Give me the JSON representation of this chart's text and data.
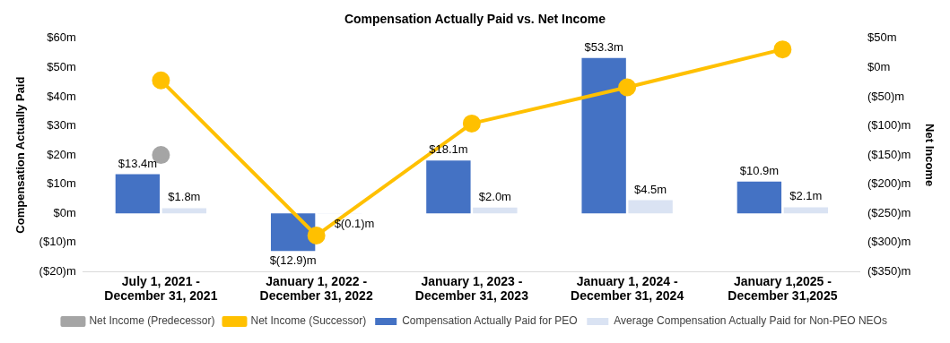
{
  "chart_data": {
    "type": "bar",
    "title": "Compensation Actually Paid vs. Net Income",
    "ylabel": "Compensation Actually Paid",
    "y2label": "Net Income",
    "categories": [
      "July 1, 2021 -\nDecember 31, 2021",
      "January 1, 2022 -\nDecember 31, 2022",
      "January 1, 2023 -\nDecember 31, 2023",
      "January 1, 2024 -\nDecember 31, 2024",
      "January 1,2025 -\nDecember 31,2025"
    ],
    "series": [
      {
        "name": "Compensation Actually Paid for PEO",
        "color": "#4472c4",
        "values": [
          13.4,
          -12.9,
          18.1,
          53.3,
          10.9
        ],
        "value_labels": [
          "$13.4m",
          "$(12.9)m",
          "$18.1m",
          "$53.3m",
          "$10.9m"
        ]
      },
      {
        "name": "Average Compensation Actually Paid for Non-PEO NEOs",
        "color": "#dae3f3",
        "values": [
          1.8,
          -0.1,
          2.0,
          4.5,
          2.1
        ],
        "value_labels": [
          "$1.8m",
          "$(0.1)m",
          "$2.0m",
          "$4.5m",
          "$2.1m"
        ]
      },
      {
        "name": "Net Income (Predecessor)",
        "type": "line",
        "axis": "y2",
        "color": "#a5a5a5",
        "values": [
          -150,
          null,
          null,
          null,
          null
        ]
      },
      {
        "name": "Net Income (Successor)",
        "type": "line",
        "axis": "y2",
        "color": "#ffc000",
        "values": [
          -22,
          -288,
          -96,
          -34,
          31
        ]
      }
    ],
    "ylim": [
      -20,
      60
    ],
    "yticks": [
      {
        "value": -20,
        "label": "($20)m"
      },
      {
        "value": -10,
        "label": "($10)m"
      },
      {
        "value": 0,
        "label": "$0m"
      },
      {
        "value": 10,
        "label": "$10m"
      },
      {
        "value": 20,
        "label": "$20m"
      },
      {
        "value": 30,
        "label": "$30m"
      },
      {
        "value": 40,
        "label": "$40m"
      },
      {
        "value": 50,
        "label": "$50m"
      },
      {
        "value": 60,
        "label": "$60m"
      }
    ],
    "y2lim": [
      -350,
      50
    ],
    "y2ticks": [
      {
        "value": -350,
        "label": "($350)m"
      },
      {
        "value": -300,
        "label": "($300)m"
      },
      {
        "value": -250,
        "label": "($250)m"
      },
      {
        "value": -200,
        "label": "($200)m"
      },
      {
        "value": -150,
        "label": "($150)m"
      },
      {
        "value": -100,
        "label": "($100)m"
      },
      {
        "value": -50,
        "label": "($50)m"
      },
      {
        "value": 0,
        "label": "$0m"
      },
      {
        "value": 50,
        "label": "$50m"
      }
    ],
    "legend": "bottom",
    "marker": "circle",
    "grid": false
  }
}
